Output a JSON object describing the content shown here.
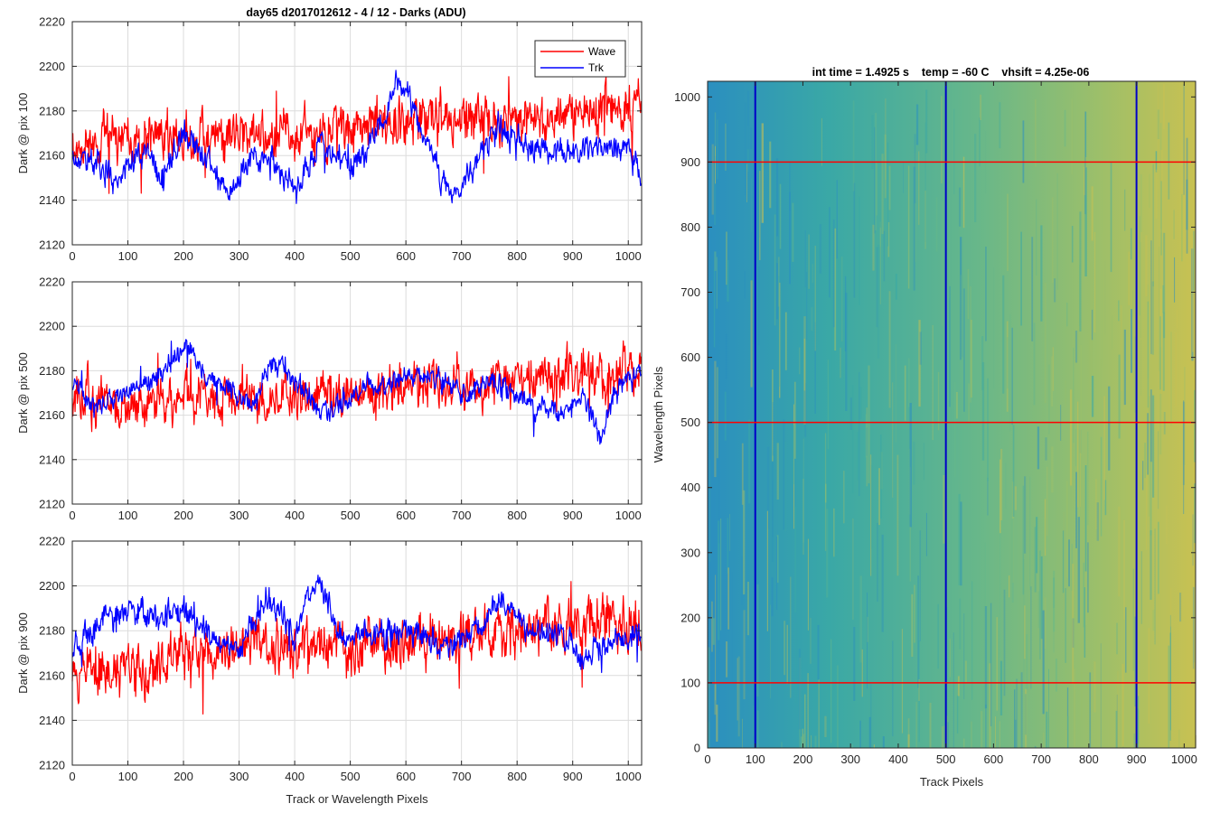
{
  "figure": {
    "title_left": "day65 d2017012612 - 4 / 12 - Darks (ADU)",
    "title_right": "int time = 1.4925 s    temp = -60 C    vhsift = 4.25e-06"
  },
  "colors": {
    "wave": "#ff0000",
    "trk": "#0000ff",
    "grid": "#dcdcdc",
    "axis": "#262626"
  },
  "chart_data": [
    {
      "type": "line",
      "panel": "top",
      "ylabel": "Dark @ pix 100",
      "xlabel": "",
      "xlim": [
        0,
        1024
      ],
      "ylim": [
        2120,
        2220
      ],
      "xticks": [
        0,
        100,
        200,
        300,
        400,
        500,
        600,
        700,
        800,
        900,
        1000
      ],
      "yticks": [
        2120,
        2140,
        2160,
        2180,
        2200,
        2220
      ],
      "grid": true,
      "legend": {
        "placement": "top-right",
        "entries": [
          "Wave",
          "Trk"
        ]
      },
      "series": [
        {
          "name": "Wave",
          "color": "#ff0000",
          "mean": 2171,
          "noise": 9,
          "seed": 11,
          "profile": [
            [
              0,
              2166
            ],
            [
              150,
              2168
            ],
            [
              300,
              2170
            ],
            [
              450,
              2172
            ],
            [
              600,
              2175
            ],
            [
              750,
              2176
            ],
            [
              900,
              2178
            ],
            [
              1023,
              2181
            ]
          ]
        },
        {
          "name": "Trk",
          "color": "#0000ff",
          "mean": 2162,
          "noise": 5,
          "seed": 23,
          "profile": [
            [
              0,
              2160
            ],
            [
              40,
              2158
            ],
            [
              80,
              2150
            ],
            [
              130,
              2162
            ],
            [
              160,
              2150
            ],
            [
              200,
              2170
            ],
            [
              240,
              2160
            ],
            [
              280,
              2142
            ],
            [
              320,
              2158
            ],
            [
              360,
              2160
            ],
            [
              400,
              2142
            ],
            [
              440,
              2165
            ],
            [
              470,
              2160
            ],
            [
              500,
              2155
            ],
            [
              560,
              2175
            ],
            [
              585,
              2195
            ],
            [
              620,
              2178
            ],
            [
              680,
              2140
            ],
            [
              720,
              2155
            ],
            [
              760,
              2172
            ],
            [
              800,
              2168
            ],
            [
              850,
              2160
            ],
            [
              900,
              2162
            ],
            [
              950,
              2165
            ],
            [
              1000,
              2162
            ],
            [
              1023,
              2152
            ]
          ]
        }
      ]
    },
    {
      "type": "line",
      "panel": "middle",
      "ylabel": "Dark @ pix 500",
      "xlabel": "",
      "xlim": [
        0,
        1024
      ],
      "ylim": [
        2120,
        2220
      ],
      "xticks": [
        0,
        100,
        200,
        300,
        400,
        500,
        600,
        700,
        800,
        900,
        1000
      ],
      "yticks": [
        2120,
        2140,
        2160,
        2180,
        2200,
        2220
      ],
      "grid": true,
      "series": [
        {
          "name": "Wave",
          "color": "#ff0000",
          "mean": 2170,
          "noise": 9,
          "seed": 37,
          "profile": [
            [
              0,
              2170
            ],
            [
              100,
              2162
            ],
            [
              200,
              2168
            ],
            [
              300,
              2168
            ],
            [
              400,
              2170
            ],
            [
              500,
              2170
            ],
            [
              600,
              2172
            ],
            [
              700,
              2174
            ],
            [
              800,
              2176
            ],
            [
              900,
              2178
            ],
            [
              1023,
              2182
            ]
          ]
        },
        {
          "name": "Trk",
          "color": "#0000ff",
          "mean": 2172,
          "noise": 4,
          "seed": 41,
          "profile": [
            [
              0,
              2172
            ],
            [
              40,
              2165
            ],
            [
              100,
              2170
            ],
            [
              160,
              2178
            ],
            [
              205,
              2192
            ],
            [
              240,
              2178
            ],
            [
              280,
              2172
            ],
            [
              320,
              2165
            ],
            [
              360,
              2185
            ],
            [
              420,
              2170
            ],
            [
              460,
              2160
            ],
            [
              520,
              2172
            ],
            [
              580,
              2175
            ],
            [
              640,
              2178
            ],
            [
              700,
              2170
            ],
            [
              760,
              2175
            ],
            [
              820,
              2165
            ],
            [
              880,
              2162
            ],
            [
              920,
              2168
            ],
            [
              950,
              2148
            ],
            [
              980,
              2175
            ],
            [
              1023,
              2180
            ]
          ]
        }
      ]
    },
    {
      "type": "line",
      "panel": "bottom",
      "ylabel": "Dark @ pix 900",
      "xlabel": "Track or Wavelength Pixels",
      "xlim": [
        0,
        1024
      ],
      "ylim": [
        2120,
        2220
      ],
      "xticks": [
        0,
        100,
        200,
        300,
        400,
        500,
        600,
        700,
        800,
        900,
        1000
      ],
      "yticks": [
        2120,
        2140,
        2160,
        2180,
        2200,
        2220
      ],
      "grid": true,
      "series": [
        {
          "name": "Wave",
          "color": "#ff0000",
          "mean": 2172,
          "noise": 10,
          "seed": 53,
          "profile": [
            [
              0,
              2165
            ],
            [
              100,
              2160
            ],
            [
              200,
              2170
            ],
            [
              300,
              2172
            ],
            [
              400,
              2172
            ],
            [
              500,
              2174
            ],
            [
              600,
              2176
            ],
            [
              700,
              2178
            ],
            [
              800,
              2180
            ],
            [
              900,
              2182
            ],
            [
              1023,
              2186
            ]
          ]
        },
        {
          "name": "Trk",
          "color": "#0000ff",
          "mean": 2180,
          "noise": 5,
          "seed": 67,
          "profile": [
            [
              0,
              2172
            ],
            [
              60,
              2185
            ],
            [
              100,
              2190
            ],
            [
              160,
              2186
            ],
            [
              220,
              2188
            ],
            [
              260,
              2175
            ],
            [
              300,
              2172
            ],
            [
              350,
              2195
            ],
            [
              400,
              2178
            ],
            [
              440,
              2205
            ],
            [
              480,
              2178
            ],
            [
              540,
              2178
            ],
            [
              600,
              2180
            ],
            [
              680,
              2172
            ],
            [
              740,
              2182
            ],
            [
              770,
              2195
            ],
            [
              820,
              2180
            ],
            [
              880,
              2178
            ],
            [
              920,
              2168
            ],
            [
              960,
              2175
            ],
            [
              1023,
              2180
            ]
          ]
        }
      ]
    },
    {
      "type": "heatmap",
      "panel": "right",
      "title": "int time = 1.4925 s    temp = -60 C    vhsift = 4.25e-06",
      "xlabel": "Track Pixels",
      "ylabel": "Wavelength Pixels",
      "xlim": [
        0,
        1024
      ],
      "ylim": [
        0,
        1024
      ],
      "xticks": [
        0,
        100,
        200,
        300,
        400,
        500,
        600,
        700,
        800,
        900,
        1000
      ],
      "yticks": [
        0,
        100,
        200,
        300,
        400,
        500,
        600,
        700,
        800,
        900,
        1000
      ],
      "colormap": [
        "#2b8fbf",
        "#3aa8a6",
        "#67b78a",
        "#9cbf6a",
        "#c8c152"
      ],
      "vertical_lines": {
        "values": [
          100,
          500,
          900
        ],
        "color": "#0000c8"
      },
      "horizontal_lines": {
        "values": [
          100,
          500,
          900
        ],
        "color": "#ff0000"
      }
    }
  ]
}
